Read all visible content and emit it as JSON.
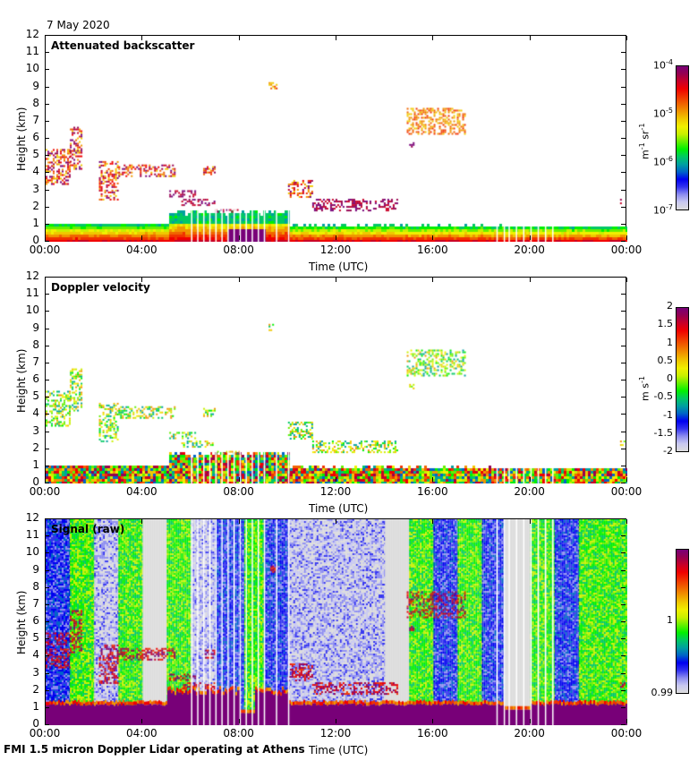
{
  "date": "7 May 2020",
  "footer": "FMI 1.5 micron Doppler Lidar operating at Athens",
  "colors": {
    "colormap": [
      "#dcdcdc",
      "#c8c8f0",
      "#8c8cf0",
      "#3232f0",
      "#0000f0",
      "#0064c8",
      "#00a0a0",
      "#00c864",
      "#00f000",
      "#64f000",
      "#c8f000",
      "#f0f000",
      "#f0c800",
      "#f09600",
      "#f06400",
      "#f03200",
      "#f00000",
      "#c80028",
      "#960050",
      "#780078"
    ],
    "gap_line": "#ffffff"
  },
  "chart_data": [
    {
      "type": "heatmap",
      "title": "Attenuated backscatter",
      "xlabel": "Time (UTC)",
      "ylabel": "Height (km)",
      "xlim": [
        0,
        24
      ],
      "ylim": [
        0,
        12
      ],
      "x_ticks": [
        "00:00",
        "04:00",
        "08:00",
        "12:00",
        "16:00",
        "20:00",
        "00:00"
      ],
      "y_ticks": [
        "0",
        "1",
        "2",
        "3",
        "4",
        "5",
        "6",
        "7",
        "8",
        "9",
        "10",
        "11",
        "12"
      ],
      "colorbar": {
        "scale": "log",
        "label": "m-1 sr-1",
        "ticks": [
          "10-4",
          "10-5",
          "10-6",
          "10-7"
        ],
        "range": [
          1e-07,
          0.0001
        ]
      },
      "boundary_layer": {
        "top_km_start": 1.2,
        "top_km_end": 1.0,
        "note": "aerosol layer 0-1.2 km, strongest near surface"
      },
      "cloud_features": [
        {
          "t_start": 0.0,
          "t_end": 1.0,
          "h_bottom": 3.4,
          "h_top": 5.4,
          "level": "high"
        },
        {
          "t_start": 1.0,
          "t_end": 1.5,
          "h_bottom": 4.2,
          "h_top": 6.7,
          "level": "high"
        },
        {
          "t_start": 2.2,
          "t_end": 3.0,
          "h_bottom": 2.5,
          "h_top": 4.7,
          "level": "high"
        },
        {
          "t_start": 3.0,
          "t_end": 5.3,
          "h_bottom": 3.8,
          "h_top": 4.5,
          "level": "high"
        },
        {
          "t_start": 5.1,
          "t_end": 6.2,
          "h_bottom": 2.6,
          "h_top": 3.0,
          "level": "max"
        },
        {
          "t_start": 5.6,
          "t_end": 7.0,
          "h_bottom": 2.1,
          "h_top": 2.5,
          "level": "max"
        },
        {
          "t_start": 6.5,
          "t_end": 7.0,
          "h_bottom": 3.9,
          "h_top": 4.4,
          "level": "high"
        },
        {
          "t_start": 7.0,
          "t_end": 8.0,
          "h_bottom": 1.7,
          "h_top": 1.9,
          "level": "max"
        },
        {
          "t_start": 9.2,
          "t_end": 9.5,
          "h_bottom": 8.9,
          "h_top": 9.3,
          "level": "mid"
        },
        {
          "t_start": 10.0,
          "t_end": 11.0,
          "h_bottom": 2.6,
          "h_top": 3.6,
          "level": "high"
        },
        {
          "t_start": 11.0,
          "t_end": 14.5,
          "h_bottom": 1.8,
          "h_top": 2.5,
          "level": "max"
        },
        {
          "t_start": 14.9,
          "t_end": 17.3,
          "h_bottom": 6.3,
          "h_top": 7.8,
          "level": "mid"
        },
        {
          "t_start": 15.0,
          "t_end": 15.2,
          "h_bottom": 5.5,
          "h_top": 5.8,
          "level": "max"
        },
        {
          "t_start": 23.7,
          "t_end": 23.9,
          "h_bottom": 2.2,
          "h_top": 2.5,
          "level": "max"
        }
      ],
      "data_gaps_hours": [
        6.0,
        6.25,
        6.5,
        6.75,
        7.0,
        7.25,
        7.5,
        7.75,
        8.0,
        8.25,
        8.5,
        8.75,
        9.0,
        9.5,
        10.0,
        18.6,
        18.9,
        19.1,
        19.4,
        19.7,
        20.0,
        20.3,
        20.6,
        20.9
      ]
    },
    {
      "type": "heatmap",
      "title": "Doppler velocity",
      "xlabel": "Time (UTC)",
      "ylabel": "Height (km)",
      "xlim": [
        0,
        24
      ],
      "ylim": [
        0,
        12
      ],
      "x_ticks": [
        "00:00",
        "04:00",
        "08:00",
        "12:00",
        "16:00",
        "20:00",
        "00:00"
      ],
      "y_ticks": [
        "0",
        "1",
        "2",
        "3",
        "4",
        "5",
        "6",
        "7",
        "8",
        "9",
        "10",
        "11",
        "12"
      ],
      "colorbar": {
        "scale": "linear",
        "label": "m s-1",
        "ticks": [
          "2",
          "1.5",
          "1",
          "0.5",
          "0",
          "-0.5",
          "-1",
          "-1.5",
          "-2"
        ],
        "range": [
          -2,
          2
        ]
      },
      "note": "Same masked region as backscatter; velocities mostly near 0, turbulent mixed values in boundary layer"
    },
    {
      "type": "heatmap",
      "title": "Signal (raw)",
      "xlabel": "Time (UTC)",
      "ylabel": "Height (km)",
      "xlim": [
        0,
        24
      ],
      "ylim": [
        0,
        12
      ],
      "x_ticks": [
        "00:00",
        "04:00",
        "08:00",
        "12:00",
        "16:00",
        "20:00",
        "00:00"
      ],
      "y_ticks": [
        "0",
        "1",
        "2",
        "3",
        "4",
        "5",
        "6",
        "7",
        "8",
        "9",
        "10",
        "11",
        "12"
      ],
      "colorbar": {
        "scale": "linear",
        "label": "",
        "ticks": [
          "1",
          "0.99"
        ],
        "range": [
          0.99,
          1.01
        ]
      },
      "noise_bands": [
        {
          "t_start": 0.0,
          "t_end": 1.0,
          "level": "blue"
        },
        {
          "t_start": 1.0,
          "t_end": 2.0,
          "level": "green"
        },
        {
          "t_start": 2.0,
          "t_end": 3.0,
          "level": "lightblue"
        },
        {
          "t_start": 3.0,
          "t_end": 4.0,
          "level": "green"
        },
        {
          "t_start": 4.0,
          "t_end": 5.0,
          "level": "grey"
        },
        {
          "t_start": 5.0,
          "t_end": 6.0,
          "level": "green"
        },
        {
          "t_start": 6.0,
          "t_end": 7.0,
          "level": "lightblue"
        },
        {
          "t_start": 7.0,
          "t_end": 8.2,
          "level": "blue"
        },
        {
          "t_start": 8.2,
          "t_end": 9.0,
          "level": "green"
        },
        {
          "t_start": 9.0,
          "t_end": 10.0,
          "level": "blue"
        },
        {
          "t_start": 10.0,
          "t_end": 13.0,
          "level": "lightblue"
        },
        {
          "t_start": 13.0,
          "t_end": 14.0,
          "level": "lightblue"
        },
        {
          "t_start": 14.0,
          "t_end": 15.0,
          "level": "grey"
        },
        {
          "t_start": 15.0,
          "t_end": 16.0,
          "level": "green"
        },
        {
          "t_start": 16.0,
          "t_end": 17.0,
          "level": "blue"
        },
        {
          "t_start": 17.0,
          "t_end": 18.0,
          "level": "green"
        },
        {
          "t_start": 18.0,
          "t_end": 18.9,
          "level": "blue"
        },
        {
          "t_start": 18.9,
          "t_end": 20.0,
          "level": "grey"
        },
        {
          "t_start": 20.0,
          "t_end": 21.0,
          "level": "green"
        },
        {
          "t_start": 21.0,
          "t_end": 22.0,
          "level": "blue"
        },
        {
          "t_start": 22.0,
          "t_end": 24.0,
          "level": "green"
        }
      ],
      "surface_layer_top_km": 1.2
    }
  ]
}
